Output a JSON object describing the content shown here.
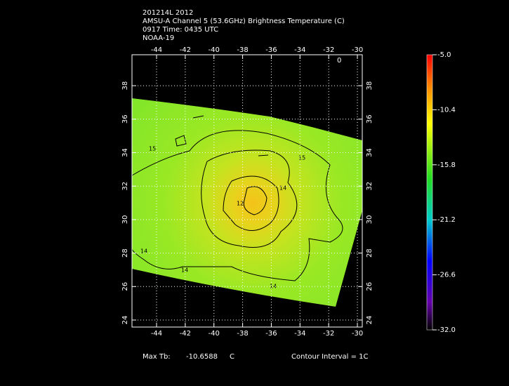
{
  "header": {
    "lines": [
      "201214L 2012",
      "AMSU-A Channel 5 (53.6GHz) Brightness Temperature (C)",
      "0917 Time: 0435 UTC",
      "NOAA-19"
    ]
  },
  "map": {
    "lon_ticks": [
      -44,
      -42,
      -40,
      -38,
      -36,
      -34,
      -32,
      -30
    ],
    "lat_ticks": [
      24,
      26,
      28,
      30,
      32,
      34,
      36,
      38
    ],
    "contour_labels": [
      "15",
      "14",
      "15",
      "12",
      "14",
      "14",
      "14",
      "0"
    ]
  },
  "colorbar": {
    "labels": [
      "-5.0",
      "-10.4",
      "-15.8",
      "-21.2",
      "-26.6",
      "-32.0"
    ]
  },
  "footer": {
    "max_label": "Max Tb:",
    "max_value": "-10.6588",
    "unit": "C",
    "interval": "Contour Interval = 1C"
  }
}
